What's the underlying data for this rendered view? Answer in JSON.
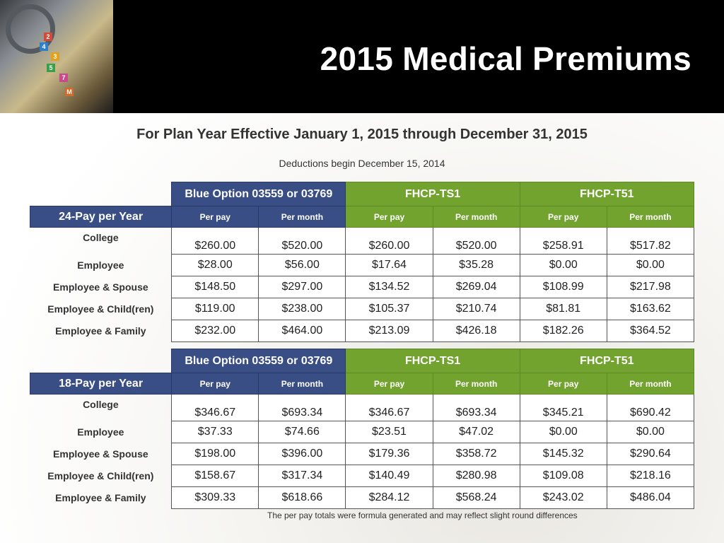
{
  "header": {
    "title": "2015 Medical Premiums"
  },
  "subtitle": "For Plan Year Effective January 1, 2015 through December 31, 2015",
  "deductions_note": "Deductions begin December 15, 2014",
  "plans": [
    "Blue Option 03559 or 03769",
    "FHCP-TS1",
    "FHCP-T51"
  ],
  "column_labels": {
    "per_pay": "Per pay",
    "per_month": "Per month"
  },
  "tables": [
    {
      "schedule": "24-Pay per Year",
      "rows": [
        {
          "label": "College",
          "values": [
            "$260.00",
            "$520.00",
            "$260.00",
            "$520.00",
            "$258.91",
            "$517.82"
          ]
        },
        {
          "label": "Employee",
          "values": [
            "$28.00",
            "$56.00",
            "$17.64",
            "$35.28",
            "$0.00",
            "$0.00"
          ]
        },
        {
          "label": "Employee & Spouse",
          "values": [
            "$148.50",
            "$297.00",
            "$134.52",
            "$269.04",
            "$108.99",
            "$217.98"
          ]
        },
        {
          "label": "Employee & Child(ren)",
          "values": [
            "$119.00",
            "$238.00",
            "$105.37",
            "$210.74",
            "$81.81",
            "$163.62"
          ]
        },
        {
          "label": "Employee & Family",
          "values": [
            "$232.00",
            "$464.00",
            "$213.09",
            "$426.18",
            "$182.26",
            "$364.52"
          ]
        }
      ]
    },
    {
      "schedule": "18-Pay per Year",
      "rows": [
        {
          "label": "College",
          "values": [
            "$346.67",
            "$693.34",
            "$346.67",
            "$693.34",
            "$345.21",
            "$690.42"
          ]
        },
        {
          "label": "Employee",
          "values": [
            "$37.33",
            "$74.66",
            "$23.51",
            "$47.02",
            "$0.00",
            "$0.00"
          ]
        },
        {
          "label": "Employee & Spouse",
          "values": [
            "$198.00",
            "$396.00",
            "$179.36",
            "$358.72",
            "$145.32",
            "$290.64"
          ]
        },
        {
          "label": "Employee & Child(ren)",
          "values": [
            "$158.67",
            "$317.34",
            "$140.49",
            "$280.98",
            "$109.08",
            "$218.16"
          ]
        },
        {
          "label": "Employee & Family",
          "values": [
            "$309.33",
            "$618.66",
            "$284.12",
            "$568.24",
            "$243.02",
            "$486.04"
          ]
        }
      ]
    }
  ],
  "footnote": "The per pay totals were formula generated and may reflect slight round differences",
  "colors": {
    "header_bg": "#000000",
    "plan_blue": "#3a4e86",
    "plan_green": "#72a32e",
    "text": "#333333"
  },
  "icons": {
    "header_image": "medical-stethoscope-photo"
  }
}
